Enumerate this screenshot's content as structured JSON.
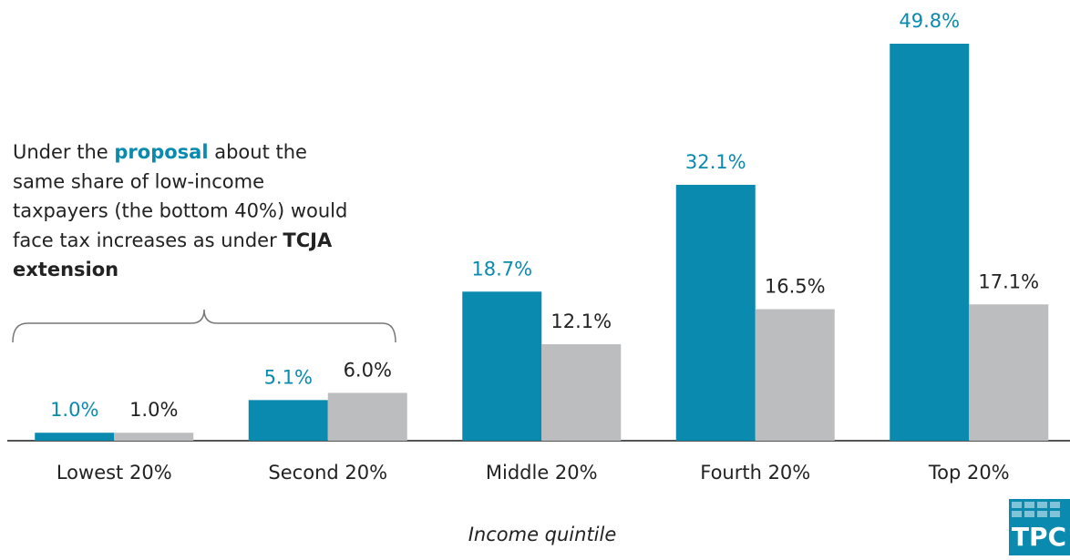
{
  "chart_data": {
    "type": "bar",
    "categories": [
      "Lowest 20%",
      "Second 20%",
      "Middle 20%",
      "Fourth 20%",
      "Top 20%"
    ],
    "series": [
      {
        "color": "#0a8aae",
        "values": [
          1.0,
          5.1,
          18.7,
          32.1,
          49.8
        ],
        "value_labels": [
          "1.0%",
          "5.1%",
          "18.7%",
          "32.1%",
          "49.8%"
        ]
      },
      {
        "color": "#bcbdbf",
        "values": [
          1.0,
          6.0,
          12.1,
          16.5,
          17.1
        ],
        "value_labels": [
          "1.0%",
          "6.0%",
          "12.1%",
          "16.5%",
          "17.1%"
        ]
      }
    ],
    "xlabel": "Income quintile",
    "annotation": [
      [
        "Under the ",
        "proposal",
        " about the"
      ],
      [
        "same share of low-income"
      ],
      [
        "taxpayers (the bottom 40%) would"
      ],
      [
        "face tax increases as under ",
        "TCJA"
      ],
      [
        "extension"
      ]
    ],
    "logo": "TPC"
  }
}
